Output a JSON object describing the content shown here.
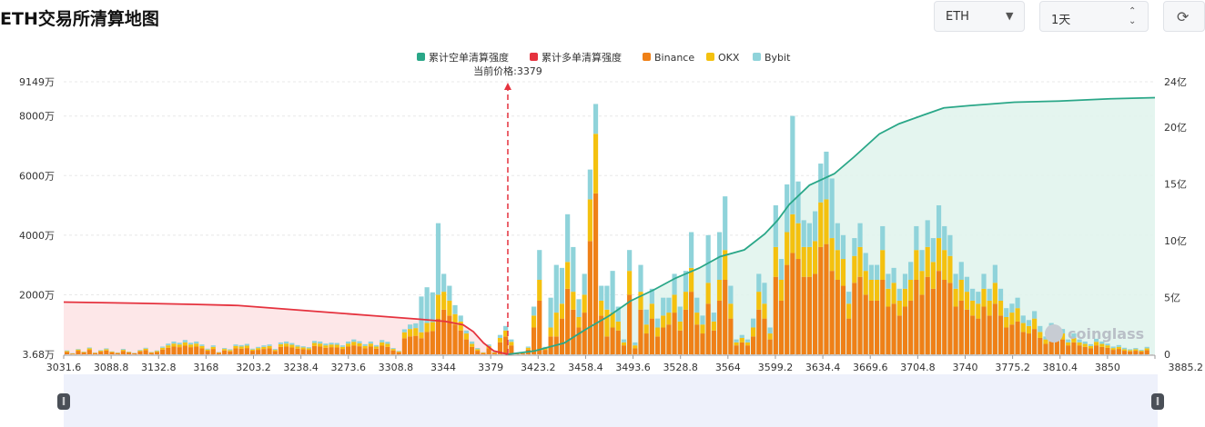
{
  "header": {
    "title": "ETH交易所清算地图",
    "coin_select": "ETH",
    "range_select": "1天",
    "refresh_icon": "refresh-icon"
  },
  "chart_data": {
    "type": "bar",
    "title": "ETH交易所清算地图",
    "current_price_label": "当前价格:3379",
    "current_price": 3379,
    "watermark": "coinglass",
    "xlim": [
      3031.6,
      3885.2
    ],
    "x_ticks": [
      "3031.6",
      "3088.8",
      "3132.8",
      "3168",
      "3203.2",
      "3238.4",
      "3273.6",
      "3308.8",
      "3344",
      "3379",
      "3423.2",
      "3458.4",
      "3493.6",
      "3528.8",
      "3564",
      "3599.2",
      "3634.4",
      "3669.6",
      "3704.8",
      "3740",
      "3775.2",
      "3810.4",
      "3850",
      "3885.2"
    ],
    "y_left": {
      "ticks": [
        "3.68万",
        "2000万",
        "4000万",
        "6000万",
        "8000万",
        "9149万"
      ],
      "range": [
        3.68,
        9149
      ],
      "unit": "万"
    },
    "y_right": {
      "ticks": [
        "0",
        "5亿",
        "10亿",
        "15亿",
        "20亿",
        "24亿"
      ],
      "range": [
        0,
        24
      ],
      "unit": "亿"
    },
    "legend": [
      {
        "name": "累计空单清算强度",
        "color": "#2aa788"
      },
      {
        "name": "累计多单清算强度",
        "color": "#e5323e"
      },
      {
        "name": "Binance",
        "color": "#ef8017"
      },
      {
        "name": "OKX",
        "color": "#f4c10f"
      },
      {
        "name": "Bybit",
        "color": "#8fd3da"
      }
    ],
    "bars_x_start": 3031.6,
    "bars_x_step": 4.4,
    "series": [
      {
        "name": "Binance",
        "color": "#ef8017",
        "values": [
          80,
          20,
          120,
          60,
          150,
          40,
          90,
          130,
          70,
          40,
          110,
          60,
          30,
          100,
          140,
          50,
          80,
          160,
          220,
          260,
          240,
          290,
          240,
          260,
          200,
          120,
          180,
          50,
          130,
          100,
          200,
          190,
          210,
          120,
          150,
          180,
          200,
          110,
          250,
          260,
          230,
          190,
          170,
          150,
          280,
          260,
          220,
          240,
          230,
          180,
          260,
          300,
          270,
          200,
          260,
          190,
          290,
          250,
          130,
          70,
          540,
          600,
          620,
          540,
          750,
          780,
          1200,
          1500,
          1300,
          1000,
          800,
          500,
          250,
          120,
          40,
          200,
          50,
          400,
          600,
          300,
          20,
          30,
          160,
          900,
          1800,
          150,
          600,
          600,
          1200,
          2200,
          1500,
          900,
          1400,
          3800,
          5400,
          1300,
          600,
          900,
          800,
          300,
          2000,
          200,
          1500,
          700,
          1200,
          600,
          900,
          1000,
          1400,
          800,
          1500,
          2100,
          1000,
          700,
          1700,
          800,
          1800,
          2500,
          1200,
          300,
          400,
          300,
          600,
          1500,
          1200,
          500,
          2600,
          1800,
          3000,
          3400,
          3200,
          2600,
          2600,
          2700,
          3600,
          3700,
          2800,
          2500,
          2300,
          1200,
          2400,
          2600,
          2000,
          1800,
          1800,
          2500,
          1600,
          1700,
          1300,
          1600,
          1800,
          2500,
          2000,
          2600,
          2200,
          2800,
          2500,
          2400,
          1600,
          1800,
          1500,
          1300,
          1200,
          1600,
          1300,
          1700,
          1300,
          900,
          1000,
          1100,
          750,
          700,
          850,
          550,
          350,
          600,
          500,
          500,
          300,
          400,
          300,
          250,
          200,
          300,
          250,
          220,
          150,
          180,
          120,
          100,
          120,
          90,
          140,
          100,
          80,
          60,
          100,
          50,
          80
        ],
        "okx": [
          30,
          10,
          40,
          20,
          50,
          15,
          30,
          40,
          20,
          15,
          40,
          20,
          10,
          30,
          50,
          20,
          30,
          60,
          80,
          100,
          90,
          110,
          90,
          100,
          80,
          40,
          70,
          20,
          50,
          40,
          80,
          70,
          80,
          40,
          60,
          70,
          80,
          40,
          90,
          100,
          90,
          70,
          60,
          50,
          100,
          100,
          80,
          90,
          90,
          70,
          100,
          120,
          100,
          80,
          100,
          70,
          110,
          100,
          50,
          30,
          200,
          250,
          260,
          200,
          300,
          300,
          800,
          600,
          500,
          350,
          300,
          200,
          100,
          50,
          20,
          80,
          20,
          150,
          200,
          120,
          10,
          10,
          60,
          400,
          700,
          60,
          300,
          800,
          500,
          900,
          600,
          350,
          600,
          1400,
          2000,
          500,
          900,
          500,
          300,
          100,
          800,
          100,
          600,
          300,
          500,
          300,
          400,
          400,
          600,
          300,
          600,
          800,
          400,
          300,
          700,
          300,
          700,
          1000,
          500,
          100,
          150,
          100,
          300,
          600,
          500,
          200,
          1000,
          700,
          1100,
          1300,
          1200,
          1000,
          1000,
          1100,
          1500,
          1500,
          1100,
          1000,
          900,
          500,
          900,
          1000,
          800,
          700,
          700,
          1000,
          600,
          700,
          500,
          600,
          700,
          1000,
          800,
          1000,
          900,
          1100,
          1000,
          900,
          600,
          700,
          600,
          500,
          500,
          600,
          500,
          700,
          500,
          350,
          400,
          450,
          300,
          250,
          350,
          200,
          150,
          250,
          200,
          200,
          100,
          150,
          100,
          100,
          80,
          120,
          100,
          80,
          60,
          70,
          50,
          40,
          50,
          30,
          60,
          40,
          30,
          25,
          40,
          20,
          30
        ],
        "bybit": [
          20,
          10,
          20,
          10,
          30,
          10,
          20,
          30,
          10,
          10,
          30,
          10,
          10,
          20,
          30,
          10,
          20,
          40,
          60,
          70,
          60,
          80,
          60,
          70,
          50,
          30,
          50,
          10,
          30,
          30,
          50,
          50,
          60,
          30,
          40,
          50,
          50,
          30,
          60,
          70,
          60,
          50,
          40,
          40,
          70,
          70,
          60,
          60,
          60,
          50,
          70,
          80,
          70,
          60,
          70,
          50,
          80,
          70,
          30,
          20,
          100,
          150,
          160,
          1200,
          1200,
          1000,
          2400,
          600,
          500,
          300,
          200,
          100,
          80,
          40,
          10,
          50,
          10,
          100,
          150,
          80,
          10,
          10,
          40,
          300,
          1000,
          40,
          1000,
          1600,
          1200,
          1600,
          1500,
          600,
          700,
          1000,
          1000,
          500,
          800,
          1400,
          500,
          100,
          700,
          100,
          900,
          500,
          500,
          300,
          600,
          500,
          700,
          500,
          700,
          1200,
          500,
          300,
          1600,
          300,
          1600,
          1800,
          600,
          100,
          100,
          100,
          300,
          600,
          700,
          200,
          1400,
          700,
          1600,
          3300,
          1400,
          900,
          800,
          1000,
          1300,
          1600,
          2000,
          900,
          800,
          400,
          600,
          800,
          600,
          500,
          500,
          800,
          500,
          500,
          400,
          500,
          600,
          800,
          700,
          900,
          800,
          1100,
          800,
          700,
          500,
          600,
          500,
          400,
          400,
          500,
          400,
          600,
          400,
          300,
          300,
          350,
          250,
          200,
          250,
          200,
          100,
          200,
          150,
          150,
          100,
          150,
          100,
          80,
          60,
          100,
          80,
          60,
          50,
          60,
          50,
          30,
          40,
          30,
          50,
          30,
          30,
          20,
          30,
          20,
          20
        ]
      }
    ],
    "long_cumulative": {
      "name": "累计多单清算强度",
      "unit": "亿",
      "x": [
        3031.6,
        3088.8,
        3132.8,
        3168,
        3203.2,
        3238.4,
        3273.6,
        3308.8,
        3330,
        3344,
        3352,
        3360,
        3368,
        3379
      ],
      "y": [
        4.6,
        4.5,
        4.4,
        4.3,
        4.0,
        3.7,
        3.4,
        3.1,
        2.9,
        2.6,
        2.0,
        1.0,
        0.3,
        0
      ]
    },
    "short_cumulative": {
      "name": "累计空单清算强度",
      "unit": "亿",
      "x": [
        3379,
        3400,
        3423.2,
        3440,
        3458.4,
        3475,
        3493.6,
        3510,
        3528.8,
        3545,
        3564,
        3580,
        3590,
        3599.2,
        3615,
        3634.4,
        3650,
        3669.6,
        3685,
        3704.8,
        3720,
        3740,
        3775.2,
        3810.4,
        3850,
        3885.2
      ],
      "y": [
        0,
        0.3,
        1.0,
        2.2,
        3.4,
        4.7,
        5.7,
        6.7,
        7.6,
        8.6,
        9.2,
        10.6,
        11.8,
        13.2,
        14.9,
        15.9,
        17.4,
        19.4,
        20.3,
        21.1,
        21.7,
        21.9,
        22.2,
        22.3,
        22.5,
        22.6
      ]
    }
  }
}
